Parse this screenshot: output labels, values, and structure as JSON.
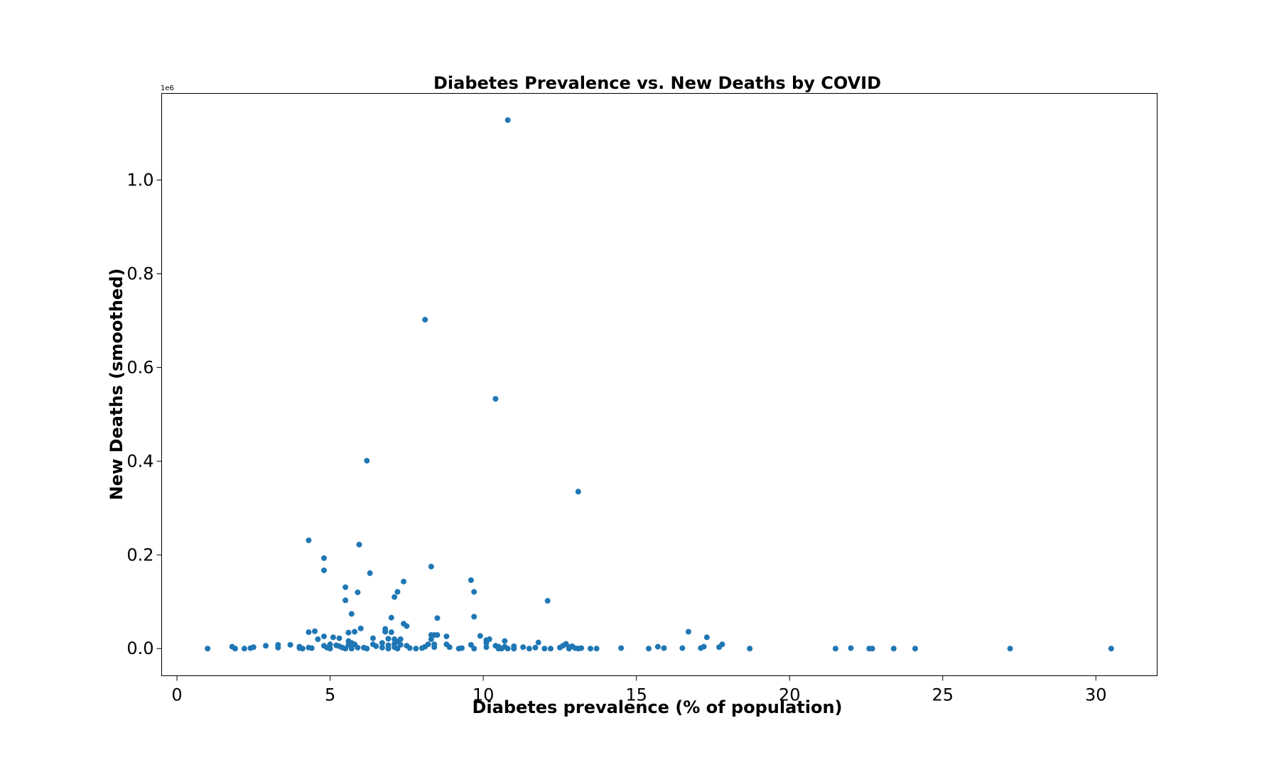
{
  "chart_data": {
    "type": "scatter",
    "title": "Diabetes Prevalence vs. New Deaths by COVID",
    "xlabel": "Diabetes prevalence (% of population)",
    "ylabel": "New Deaths (smoothed)",
    "y_offset_label": "1e6",
    "xlim": [
      -0.5,
      32
    ],
    "ylim": [
      -0.058,
      1.185
    ],
    "x_ticks": [
      0,
      5,
      10,
      15,
      20,
      25,
      30
    ],
    "x_tick_labels": [
      "0",
      "5",
      "10",
      "15",
      "20",
      "25",
      "30"
    ],
    "y_ticks": [
      0.0,
      0.2,
      0.4,
      0.6,
      0.8,
      1.0
    ],
    "y_tick_labels": [
      "0.0",
      "0.2",
      "0.4",
      "0.6",
      "0.8",
      "1.0"
    ],
    "grid": false,
    "marker_color": "#1f77b4",
    "points": [
      {
        "x": 1.0,
        "y": 0.0
      },
      {
        "x": 1.8,
        "y": 0.004
      },
      {
        "x": 1.9,
        "y": 0.0
      },
      {
        "x": 2.2,
        "y": 0.0
      },
      {
        "x": 2.4,
        "y": 0.001
      },
      {
        "x": 2.5,
        "y": 0.003
      },
      {
        "x": 2.9,
        "y": 0.006
      },
      {
        "x": 3.3,
        "y": 0.008
      },
      {
        "x": 3.3,
        "y": 0.002
      },
      {
        "x": 3.7,
        "y": 0.008
      },
      {
        "x": 4.0,
        "y": 0.004
      },
      {
        "x": 4.0,
        "y": 0.001
      },
      {
        "x": 4.1,
        "y": 0.0
      },
      {
        "x": 4.3,
        "y": 0.231
      },
      {
        "x": 4.3,
        "y": 0.035
      },
      {
        "x": 4.3,
        "y": 0.002
      },
      {
        "x": 4.4,
        "y": 0.001
      },
      {
        "x": 4.5,
        "y": 0.037
      },
      {
        "x": 4.6,
        "y": 0.02
      },
      {
        "x": 4.8,
        "y": 0.193
      },
      {
        "x": 4.8,
        "y": 0.167
      },
      {
        "x": 4.8,
        "y": 0.026
      },
      {
        "x": 4.8,
        "y": 0.006
      },
      {
        "x": 4.9,
        "y": 0.002
      },
      {
        "x": 5.0,
        "y": 0.009
      },
      {
        "x": 5.0,
        "y": 0.0
      },
      {
        "x": 5.1,
        "y": 0.024
      },
      {
        "x": 5.2,
        "y": 0.007
      },
      {
        "x": 5.3,
        "y": 0.022
      },
      {
        "x": 5.3,
        "y": 0.005
      },
      {
        "x": 5.4,
        "y": 0.002
      },
      {
        "x": 5.5,
        "y": 0.131
      },
      {
        "x": 5.5,
        "y": 0.103
      },
      {
        "x": 5.5,
        "y": 0.0
      },
      {
        "x": 5.6,
        "y": 0.034
      },
      {
        "x": 5.6,
        "y": 0.016
      },
      {
        "x": 5.6,
        "y": 0.008
      },
      {
        "x": 5.7,
        "y": 0.074
      },
      {
        "x": 5.7,
        "y": 0.012
      },
      {
        "x": 5.7,
        "y": 0.0
      },
      {
        "x": 5.8,
        "y": 0.036
      },
      {
        "x": 5.8,
        "y": 0.009
      },
      {
        "x": 5.9,
        "y": 0.12
      },
      {
        "x": 5.9,
        "y": 0.002
      },
      {
        "x": 5.95,
        "y": 0.222
      },
      {
        "x": 6.0,
        "y": 0.043
      },
      {
        "x": 6.1,
        "y": 0.002
      },
      {
        "x": 6.2,
        "y": 0.401
      },
      {
        "x": 6.2,
        "y": 0.0
      },
      {
        "x": 6.3,
        "y": 0.161
      },
      {
        "x": 6.4,
        "y": 0.022
      },
      {
        "x": 6.4,
        "y": 0.009
      },
      {
        "x": 6.5,
        "y": 0.005
      },
      {
        "x": 6.7,
        "y": 0.012
      },
      {
        "x": 6.7,
        "y": 0.002
      },
      {
        "x": 6.8,
        "y": 0.042
      },
      {
        "x": 6.8,
        "y": 0.036
      },
      {
        "x": 6.9,
        "y": 0.021
      },
      {
        "x": 6.9,
        "y": 0.007
      },
      {
        "x": 6.9,
        "y": 0.0
      },
      {
        "x": 7.0,
        "y": 0.066
      },
      {
        "x": 7.0,
        "y": 0.035
      },
      {
        "x": 7.1,
        "y": 0.11
      },
      {
        "x": 7.1,
        "y": 0.02
      },
      {
        "x": 7.1,
        "y": 0.01
      },
      {
        "x": 7.1,
        "y": 0.003
      },
      {
        "x": 7.2,
        "y": 0.121
      },
      {
        "x": 7.2,
        "y": 0.015
      },
      {
        "x": 7.2,
        "y": 0.0
      },
      {
        "x": 7.3,
        "y": 0.02
      },
      {
        "x": 7.3,
        "y": 0.008
      },
      {
        "x": 7.4,
        "y": 0.053
      },
      {
        "x": 7.4,
        "y": 0.143
      },
      {
        "x": 7.5,
        "y": 0.048
      },
      {
        "x": 7.5,
        "y": 0.006
      },
      {
        "x": 7.6,
        "y": 0.001
      },
      {
        "x": 7.8,
        "y": 0.0
      },
      {
        "x": 8.0,
        "y": 0.001
      },
      {
        "x": 8.1,
        "y": 0.702
      },
      {
        "x": 8.1,
        "y": 0.004
      },
      {
        "x": 8.2,
        "y": 0.009
      },
      {
        "x": 8.3,
        "y": 0.02
      },
      {
        "x": 8.3,
        "y": 0.175
      },
      {
        "x": 8.3,
        "y": 0.029
      },
      {
        "x": 8.4,
        "y": 0.003
      },
      {
        "x": 8.4,
        "y": 0.029
      },
      {
        "x": 8.4,
        "y": 0.009
      },
      {
        "x": 8.5,
        "y": 0.065
      },
      {
        "x": 8.5,
        "y": 0.029
      },
      {
        "x": 8.8,
        "y": 0.026
      },
      {
        "x": 8.8,
        "y": 0.009
      },
      {
        "x": 8.9,
        "y": 0.003
      },
      {
        "x": 9.2,
        "y": 0.0
      },
      {
        "x": 9.3,
        "y": 0.001
      },
      {
        "x": 9.6,
        "y": 0.146
      },
      {
        "x": 9.6,
        "y": 0.008
      },
      {
        "x": 9.7,
        "y": 0.121
      },
      {
        "x": 9.7,
        "y": 0.068
      },
      {
        "x": 9.7,
        "y": 0.0
      },
      {
        "x": 9.9,
        "y": 0.027
      },
      {
        "x": 10.1,
        "y": 0.018
      },
      {
        "x": 10.1,
        "y": 0.012
      },
      {
        "x": 10.1,
        "y": 0.003
      },
      {
        "x": 10.2,
        "y": 0.02
      },
      {
        "x": 10.4,
        "y": 0.533
      },
      {
        "x": 10.4,
        "y": 0.006
      },
      {
        "x": 10.5,
        "y": 0.004
      },
      {
        "x": 10.5,
        "y": 0.0
      },
      {
        "x": 10.6,
        "y": 0.0
      },
      {
        "x": 10.7,
        "y": 0.016
      },
      {
        "x": 10.7,
        "y": 0.004
      },
      {
        "x": 10.8,
        "y": 1.128
      },
      {
        "x": 10.8,
        "y": 0.0
      },
      {
        "x": 11.0,
        "y": 0.005
      },
      {
        "x": 11.0,
        "y": 0.0
      },
      {
        "x": 11.3,
        "y": 0.003
      },
      {
        "x": 11.5,
        "y": 0.0
      },
      {
        "x": 11.7,
        "y": 0.002
      },
      {
        "x": 11.8,
        "y": 0.013
      },
      {
        "x": 12.0,
        "y": 0.0
      },
      {
        "x": 12.1,
        "y": 0.102
      },
      {
        "x": 12.2,
        "y": 0.0
      },
      {
        "x": 12.5,
        "y": 0.002
      },
      {
        "x": 12.6,
        "y": 0.006
      },
      {
        "x": 12.7,
        "y": 0.01
      },
      {
        "x": 12.8,
        "y": 0.003
      },
      {
        "x": 12.8,
        "y": 0.0
      },
      {
        "x": 12.9,
        "y": 0.005
      },
      {
        "x": 13.0,
        "y": 0.001
      },
      {
        "x": 13.1,
        "y": 0.335
      },
      {
        "x": 13.1,
        "y": 0.0
      },
      {
        "x": 13.2,
        "y": 0.001
      },
      {
        "x": 13.5,
        "y": 0.0
      },
      {
        "x": 13.7,
        "y": 0.0
      },
      {
        "x": 14.5,
        "y": 0.001
      },
      {
        "x": 15.4,
        "y": 0.0
      },
      {
        "x": 15.7,
        "y": 0.004
      },
      {
        "x": 15.9,
        "y": 0.001
      },
      {
        "x": 16.5,
        "y": 0.001
      },
      {
        "x": 16.7,
        "y": 0.036
      },
      {
        "x": 17.1,
        "y": 0.001
      },
      {
        "x": 17.2,
        "y": 0.004
      },
      {
        "x": 17.3,
        "y": 0.024
      },
      {
        "x": 17.7,
        "y": 0.003
      },
      {
        "x": 17.8,
        "y": 0.009
      },
      {
        "x": 18.7,
        "y": 0.0
      },
      {
        "x": 21.5,
        "y": 0.0
      },
      {
        "x": 22.0,
        "y": 0.001
      },
      {
        "x": 22.6,
        "y": 0.0
      },
      {
        "x": 22.7,
        "y": 0.0
      },
      {
        "x": 23.4,
        "y": 0.0
      },
      {
        "x": 24.1,
        "y": 0.0
      },
      {
        "x": 27.2,
        "y": 0.0
      },
      {
        "x": 30.5,
        "y": 0.0
      }
    ]
  }
}
